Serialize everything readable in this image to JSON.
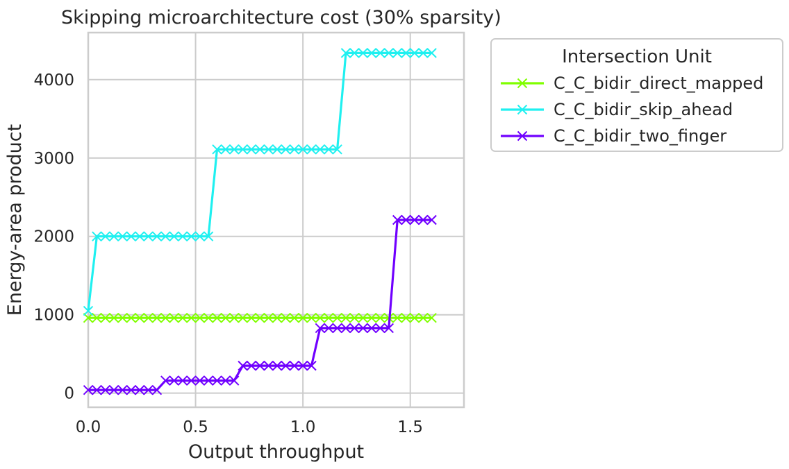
{
  "chart_data": {
    "type": "line",
    "title": "Skipping microarchitecture cost (30% sparsity)",
    "xlabel": "Output throughput",
    "ylabel": "Energy-area product",
    "xlim": [
      0,
      1.75
    ],
    "ylim": [
      -180,
      4600
    ],
    "xticks": [
      {
        "value": 0.0,
        "label": "0.0"
      },
      {
        "value": 0.5,
        "label": "0.5"
      },
      {
        "value": 1.0,
        "label": "1.0"
      },
      {
        "value": 1.5,
        "label": "1.5"
      }
    ],
    "yticks": [
      {
        "value": 0,
        "label": "0"
      },
      {
        "value": 1000,
        "label": "1000"
      },
      {
        "value": 2000,
        "label": "2000"
      },
      {
        "value": 3000,
        "label": "3000"
      },
      {
        "value": 4000,
        "label": "4000"
      }
    ],
    "grid": true,
    "legend": {
      "title": "Intersection Unit",
      "placement": "outside-top-right"
    },
    "marker": "x",
    "series": [
      {
        "name": "C_C_bidir_direct_mapped",
        "color": "#80ff00",
        "points": [
          [
            0.0,
            960
          ],
          [
            0.04,
            960
          ],
          [
            0.08,
            960
          ],
          [
            0.12,
            960
          ],
          [
            0.16,
            960
          ],
          [
            0.2,
            960
          ],
          [
            0.24,
            960
          ],
          [
            0.28,
            960
          ],
          [
            0.32,
            960
          ],
          [
            0.36,
            960
          ],
          [
            0.4,
            960
          ],
          [
            0.44,
            960
          ],
          [
            0.48,
            960
          ],
          [
            0.52,
            960
          ],
          [
            0.56,
            960
          ],
          [
            0.6,
            960
          ],
          [
            0.64,
            960
          ],
          [
            0.68,
            960
          ],
          [
            0.72,
            960
          ],
          [
            0.76,
            960
          ],
          [
            0.8,
            960
          ],
          [
            0.84,
            960
          ],
          [
            0.88,
            960
          ],
          [
            0.92,
            960
          ],
          [
            0.96,
            960
          ],
          [
            1.0,
            960
          ],
          [
            1.04,
            960
          ],
          [
            1.08,
            960
          ],
          [
            1.12,
            960
          ],
          [
            1.16,
            960
          ],
          [
            1.2,
            960
          ],
          [
            1.24,
            960
          ],
          [
            1.28,
            960
          ],
          [
            1.32,
            960
          ],
          [
            1.36,
            960
          ],
          [
            1.4,
            960
          ],
          [
            1.44,
            960
          ],
          [
            1.48,
            960
          ],
          [
            1.52,
            960
          ],
          [
            1.56,
            960
          ],
          [
            1.6,
            960
          ]
        ]
      },
      {
        "name": "C_C_bidir_skip_ahead",
        "color": "#1ff0f0",
        "points": [
          [
            0.0,
            1050
          ],
          [
            0.04,
            2000
          ],
          [
            0.08,
            2000
          ],
          [
            0.12,
            2000
          ],
          [
            0.16,
            2000
          ],
          [
            0.2,
            2000
          ],
          [
            0.24,
            2000
          ],
          [
            0.28,
            2000
          ],
          [
            0.32,
            2000
          ],
          [
            0.36,
            2000
          ],
          [
            0.4,
            2000
          ],
          [
            0.44,
            2000
          ],
          [
            0.48,
            2000
          ],
          [
            0.52,
            2000
          ],
          [
            0.56,
            2000
          ],
          [
            0.6,
            3110
          ],
          [
            0.64,
            3110
          ],
          [
            0.68,
            3110
          ],
          [
            0.72,
            3110
          ],
          [
            0.76,
            3110
          ],
          [
            0.8,
            3110
          ],
          [
            0.84,
            3110
          ],
          [
            0.88,
            3110
          ],
          [
            0.92,
            3110
          ],
          [
            0.96,
            3110
          ],
          [
            1.0,
            3110
          ],
          [
            1.04,
            3110
          ],
          [
            1.08,
            3110
          ],
          [
            1.12,
            3110
          ],
          [
            1.16,
            3110
          ],
          [
            1.2,
            4340
          ],
          [
            1.24,
            4340
          ],
          [
            1.28,
            4340
          ],
          [
            1.32,
            4340
          ],
          [
            1.36,
            4340
          ],
          [
            1.4,
            4340
          ],
          [
            1.44,
            4340
          ],
          [
            1.48,
            4340
          ],
          [
            1.52,
            4340
          ],
          [
            1.56,
            4340
          ],
          [
            1.6,
            4340
          ]
        ]
      },
      {
        "name": "C_C_bidir_two_finger",
        "color": "#7000ff",
        "points": [
          [
            0.0,
            40
          ],
          [
            0.04,
            40
          ],
          [
            0.08,
            40
          ],
          [
            0.12,
            40
          ],
          [
            0.16,
            40
          ],
          [
            0.2,
            40
          ],
          [
            0.24,
            40
          ],
          [
            0.28,
            40
          ],
          [
            0.32,
            40
          ],
          [
            0.36,
            160
          ],
          [
            0.4,
            160
          ],
          [
            0.44,
            160
          ],
          [
            0.48,
            160
          ],
          [
            0.52,
            160
          ],
          [
            0.56,
            160
          ],
          [
            0.6,
            160
          ],
          [
            0.64,
            160
          ],
          [
            0.68,
            160
          ],
          [
            0.72,
            350
          ],
          [
            0.76,
            350
          ],
          [
            0.8,
            350
          ],
          [
            0.84,
            350
          ],
          [
            0.88,
            350
          ],
          [
            0.92,
            350
          ],
          [
            0.96,
            350
          ],
          [
            1.0,
            350
          ],
          [
            1.04,
            350
          ],
          [
            1.08,
            830
          ],
          [
            1.12,
            830
          ],
          [
            1.16,
            830
          ],
          [
            1.2,
            830
          ],
          [
            1.24,
            830
          ],
          [
            1.28,
            830
          ],
          [
            1.32,
            830
          ],
          [
            1.36,
            830
          ],
          [
            1.4,
            830
          ],
          [
            1.44,
            2210
          ],
          [
            1.48,
            2210
          ],
          [
            1.52,
            2210
          ],
          [
            1.56,
            2210
          ],
          [
            1.6,
            2210
          ]
        ]
      }
    ]
  }
}
